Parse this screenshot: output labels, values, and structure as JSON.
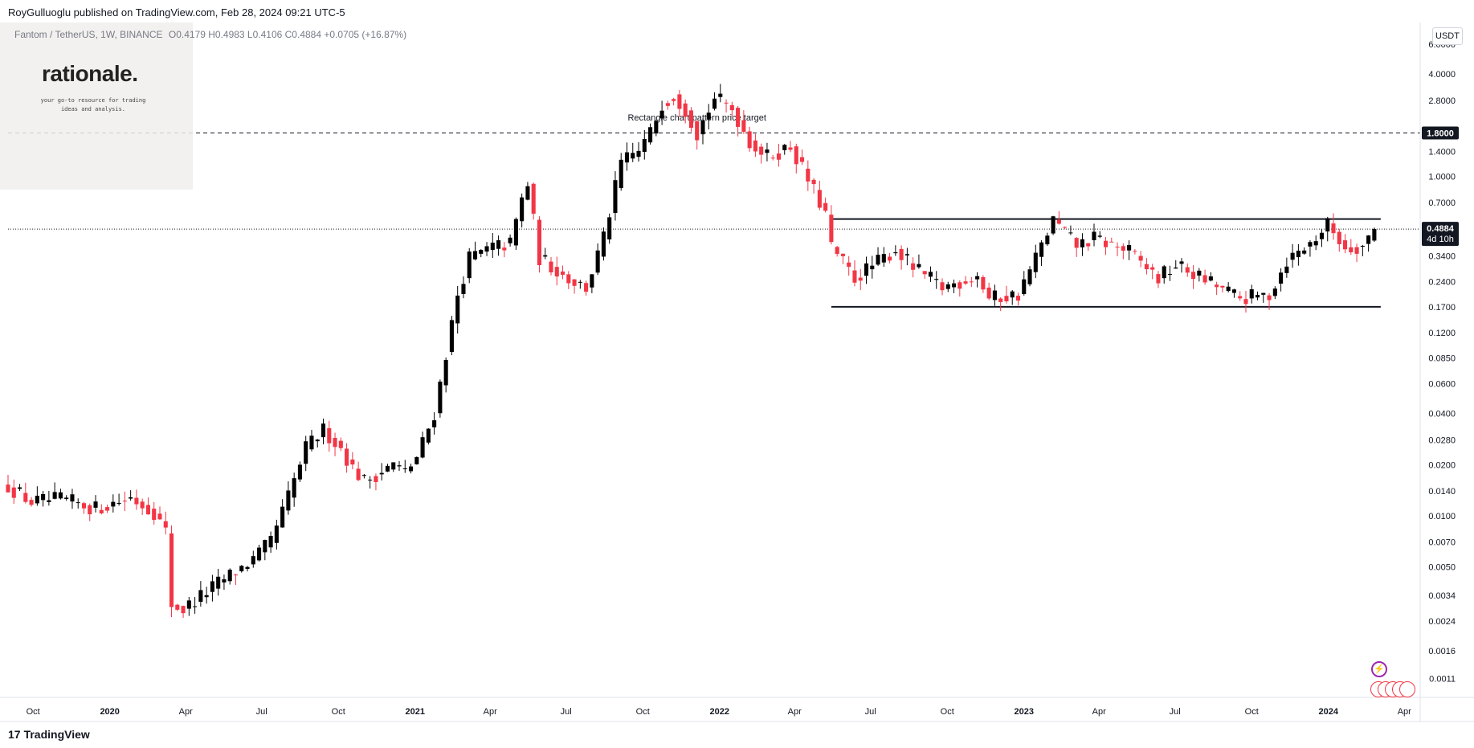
{
  "header": {
    "publisher": "RoyGulluoglu published on TradingView.com, Feb 28, 2024 09:21 UTC-5",
    "symbol": "Fantom / TetherUS, 1W, BINANCE",
    "ohlc": "O0.4179 H0.4983 L0.4106 C0.4884 +0.0705 (+16.87%)"
  },
  "logo": {
    "title": "rationale.",
    "subtitle": "your go-to resource for trading ideas and analysis."
  },
  "currency": "USDT",
  "footer": {
    "brand": "TradingView"
  },
  "colors": {
    "up": "#000000",
    "down": "#f23645",
    "grid": "#f0f3fa",
    "axis_text": "#131722"
  },
  "icons": [
    "flash-icon",
    "flag-icon",
    "tradingview-logo-icon"
  ],
  "chart_data": {
    "type": "candlestick",
    "title": "Fantom / TetherUS, 1W, BINANCE",
    "scale": "log",
    "ylim": [
      0.00085,
      6.0
    ],
    "xlim": [
      "2019-09-01",
      "2024-04-20"
    ],
    "y_ticks": [
      "6.0000",
      "4.0000",
      "2.8000",
      "1.8000",
      "1.4000",
      "1.0000",
      "0.7000",
      "0.4884",
      "0.3400",
      "0.2400",
      "0.1700",
      "0.1200",
      "0.0850",
      "0.0600",
      "0.0400",
      "0.0280",
      "0.0200",
      "0.0140",
      "0.0100",
      "0.0070",
      "0.0050",
      "0.0034",
      "0.0024",
      "0.0016",
      "0.0011"
    ],
    "x_ticks": [
      {
        "label": "Oct",
        "date": "2019-10-01"
      },
      {
        "label": "2020",
        "date": "2020-01-01"
      },
      {
        "label": "Apr",
        "date": "2020-04-01"
      },
      {
        "label": "Jul",
        "date": "2020-07-01"
      },
      {
        "label": "Oct",
        "date": "2020-10-01"
      },
      {
        "label": "2021",
        "date": "2021-01-01"
      },
      {
        "label": "Apr",
        "date": "2021-04-01"
      },
      {
        "label": "Jul",
        "date": "2021-07-01"
      },
      {
        "label": "Oct",
        "date": "2021-10-01"
      },
      {
        "label": "2022",
        "date": "2022-01-01"
      },
      {
        "label": "Apr",
        "date": "2022-04-01"
      },
      {
        "label": "Jul",
        "date": "2022-07-01"
      },
      {
        "label": "Oct",
        "date": "2022-10-01"
      },
      {
        "label": "2023",
        "date": "2023-01-01"
      },
      {
        "label": "Apr",
        "date": "2023-04-01"
      },
      {
        "label": "Jul",
        "date": "2023-07-01"
      },
      {
        "label": "Oct",
        "date": "2023-10-01"
      },
      {
        "label": "2024",
        "date": "2024-01-01"
      },
      {
        "label": "Apr",
        "date": "2024-04-01"
      }
    ],
    "anchors": [
      [
        "2019-09-01",
        0.015
      ],
      [
        "2019-09-29",
        0.012
      ],
      [
        "2019-11-03",
        0.0125
      ],
      [
        "2019-12-15",
        0.011
      ],
      [
        "2020-01-26",
        0.0128
      ],
      [
        "2020-02-23",
        0.0105
      ],
      [
        "2020-03-08",
        0.008
      ],
      [
        "2020-03-15",
        0.003
      ],
      [
        "2020-03-29",
        0.0028
      ],
      [
        "2020-05-10",
        0.004
      ],
      [
        "2020-06-21",
        0.0055
      ],
      [
        "2020-07-12",
        0.007
      ],
      [
        "2020-08-02",
        0.013
      ],
      [
        "2020-08-23",
        0.025
      ],
      [
        "2020-09-13",
        0.032
      ],
      [
        "2020-10-04",
        0.025
      ],
      [
        "2020-10-18",
        0.019
      ],
      [
        "2020-11-01",
        0.016
      ],
      [
        "2020-12-06",
        0.02
      ],
      [
        "2020-12-20",
        0.018
      ],
      [
        "2021-01-03",
        0.022
      ],
      [
        "2021-01-24",
        0.04
      ],
      [
        "2021-02-07",
        0.09
      ],
      [
        "2021-02-21",
        0.2
      ],
      [
        "2021-03-07",
        0.33
      ],
      [
        "2021-04-04",
        0.38
      ],
      [
        "2021-04-25",
        0.4
      ],
      [
        "2021-05-09",
        0.73
      ],
      [
        "2021-05-16",
        0.9
      ],
      [
        "2021-05-30",
        0.33
      ],
      [
        "2021-07-04",
        0.25
      ],
      [
        "2021-07-25",
        0.22
      ],
      [
        "2021-08-15",
        0.43
      ],
      [
        "2021-09-05",
        1.2
      ],
      [
        "2021-09-26",
        1.4
      ],
      [
        "2021-10-10",
        1.8
      ],
      [
        "2021-10-24",
        2.7
      ],
      [
        "2021-11-07",
        3.0
      ],
      [
        "2021-11-21",
        2.5
      ],
      [
        "2021-12-05",
        1.8
      ],
      [
        "2021-12-26",
        2.9
      ],
      [
        "2022-01-16",
        2.5
      ],
      [
        "2022-02-06",
        1.6
      ],
      [
        "2022-02-27",
        1.3
      ],
      [
        "2022-03-27",
        1.5
      ],
      [
        "2022-04-17",
        0.95
      ],
      [
        "2022-05-08",
        0.6
      ],
      [
        "2022-05-15",
        0.38
      ],
      [
        "2022-06-12",
        0.25
      ],
      [
        "2022-06-26",
        0.28
      ],
      [
        "2022-07-31",
        0.37
      ],
      [
        "2022-08-21",
        0.29
      ],
      [
        "2022-09-25",
        0.22
      ],
      [
        "2022-11-06",
        0.26
      ],
      [
        "2022-11-20",
        0.19
      ],
      [
        "2022-12-25",
        0.2
      ],
      [
        "2023-01-15",
        0.33
      ],
      [
        "2023-02-05",
        0.55
      ],
      [
        "2023-03-05",
        0.39
      ],
      [
        "2023-03-26",
        0.43
      ],
      [
        "2023-05-07",
        0.36
      ],
      [
        "2023-06-11",
        0.25
      ],
      [
        "2023-07-02",
        0.3
      ],
      [
        "2023-08-13",
        0.235
      ],
      [
        "2023-09-17",
        0.19
      ],
      [
        "2023-10-22",
        0.2
      ],
      [
        "2023-11-12",
        0.32
      ],
      [
        "2023-12-10",
        0.4
      ],
      [
        "2023-12-31",
        0.52
      ],
      [
        "2024-01-21",
        0.38
      ],
      [
        "2024-02-11",
        0.39
      ],
      [
        "2024-02-25",
        0.4884
      ]
    ],
    "last": {
      "open": 0.4179,
      "high": 0.4983,
      "low": 0.4106,
      "close": 0.4884
    },
    "current_price_label": "0.4884",
    "countdown_label": "4d 10h",
    "levels": [
      {
        "name": "Rectangle chart pattern price target",
        "value": 1.8,
        "label": "1.8000",
        "style": "dashed",
        "from": "2019-09-01",
        "to": "2024-04-20"
      },
      {
        "name": "rectangle-resistance",
        "value": 0.56,
        "style": "solid",
        "from": "2022-05-15",
        "to": "2024-02-25"
      },
      {
        "name": "rectangle-support",
        "value": 0.17,
        "style": "solid",
        "from": "2022-05-15",
        "to": "2024-02-25"
      }
    ],
    "annotation": {
      "text": "Rectangle chart pattern price target",
      "date": "2021-12-05",
      "value": 2.2
    }
  }
}
